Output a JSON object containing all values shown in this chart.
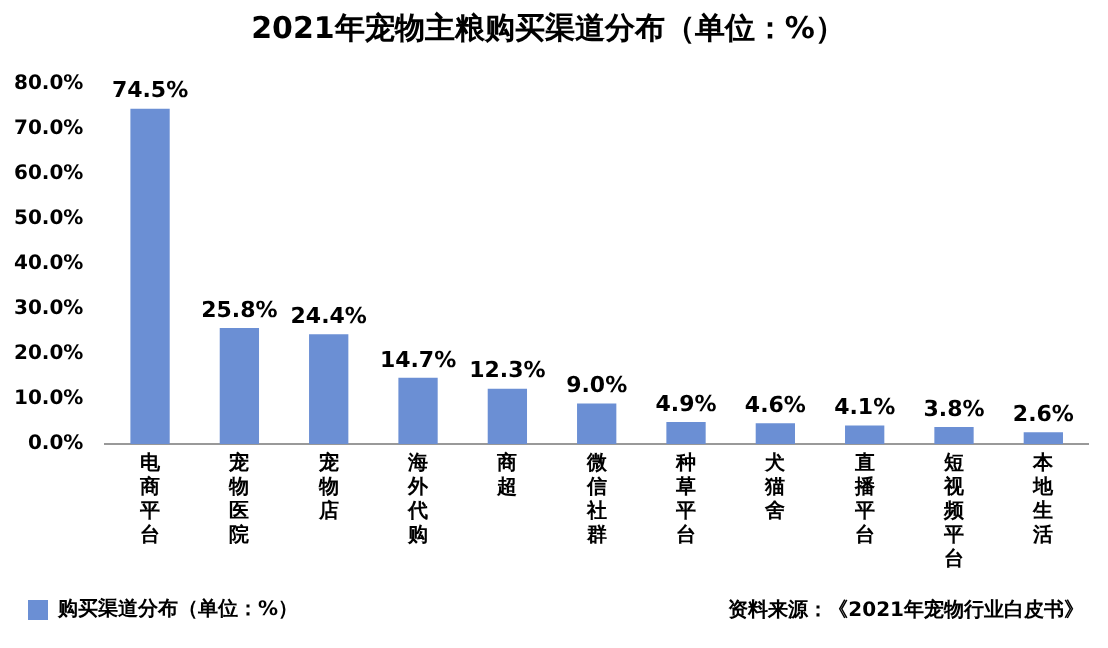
{
  "chart_data": {
    "type": "bar",
    "title": "2021年宠物主粮购买渠道分布（单位：%）",
    "categories": [
      "电商平台",
      "宠物医院",
      "宠物店",
      "海外代购",
      "商超",
      "微信社群",
      "种草平台",
      "犬猫舍",
      "直播平台",
      "短视频平台",
      "本地生活"
    ],
    "series": [
      {
        "name": "购买渠道分布（单位：%）",
        "color": "#6b8fd4",
        "values": [
          74.5,
          25.8,
          24.4,
          14.7,
          12.3,
          9.0,
          4.9,
          4.6,
          4.1,
          3.8,
          2.6
        ],
        "value_labels": [
          "74.5%",
          "25.8%",
          "24.4%",
          "14.7%",
          "12.3%",
          "9.0%",
          "4.9%",
          "4.6%",
          "4.1%",
          "3.8%",
          "2.6%"
        ]
      }
    ],
    "ylim": [
      0,
      80
    ],
    "yticks": [
      {
        "value": 0,
        "label": "0.0%"
      },
      {
        "value": 10,
        "label": "10.0%"
      },
      {
        "value": 20,
        "label": "20.0%"
      },
      {
        "value": 30,
        "label": "30.0%"
      },
      {
        "value": 40,
        "label": "40.0%"
      },
      {
        "value": 50,
        "label": "50.0%"
      },
      {
        "value": 60,
        "label": "60.0%"
      },
      {
        "value": 70,
        "label": "70.0%"
      },
      {
        "value": 80,
        "label": "80.0%"
      }
    ],
    "grid": false,
    "legend": "bottom left",
    "annotations": [
      "资料来源：《2021年宠物行业白皮书》"
    ]
  }
}
